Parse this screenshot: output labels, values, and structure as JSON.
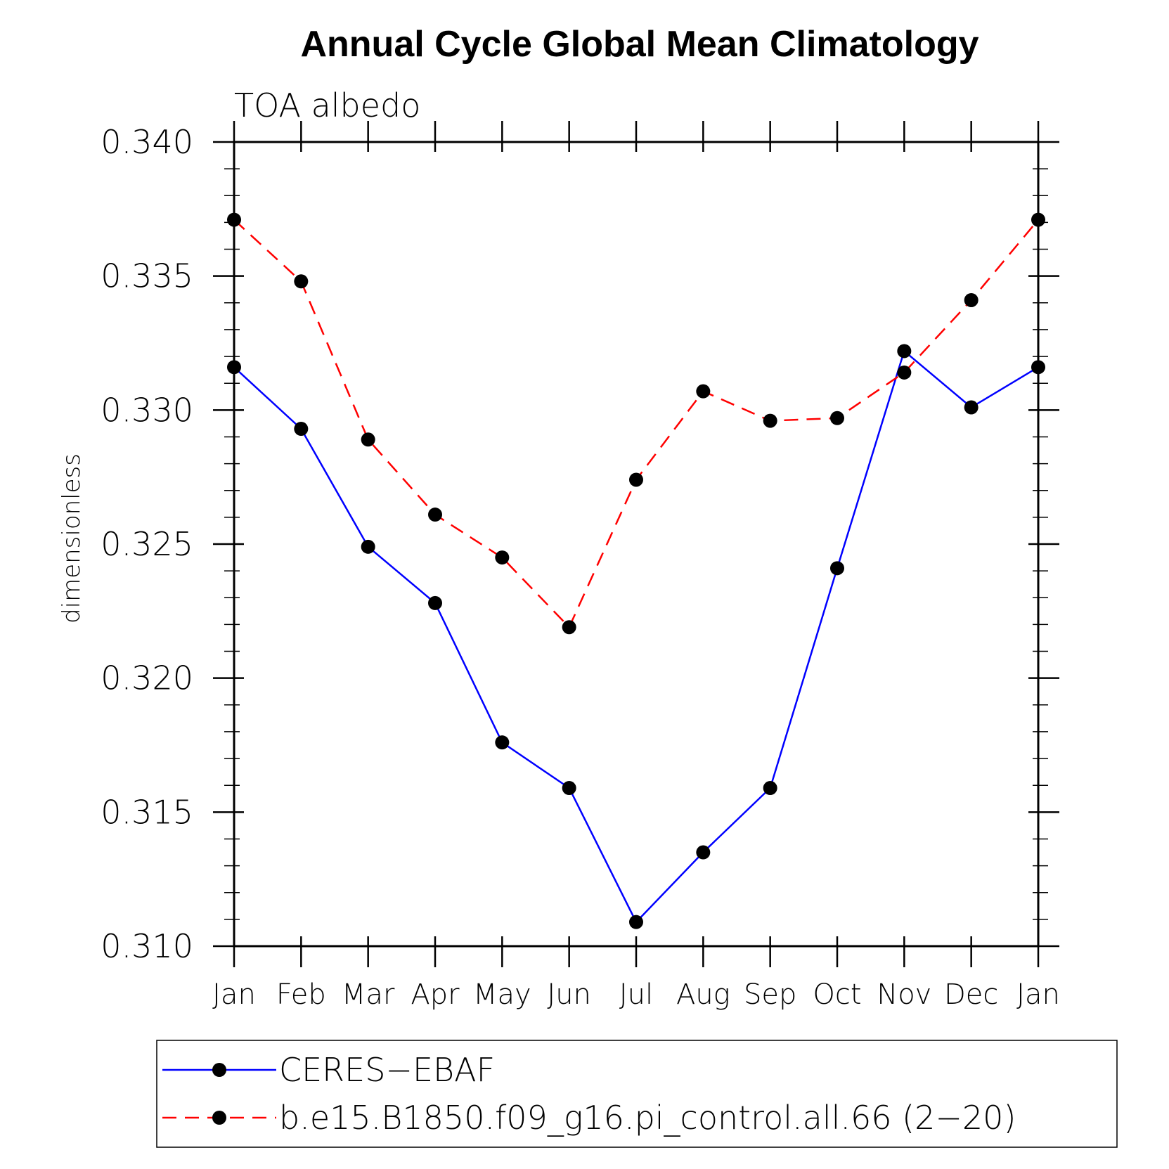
{
  "chart_data": {
    "type": "line",
    "title": "Annual Cycle Global Mean Climatology",
    "subtitle": "TOA albedo",
    "ylabel": "dimensionless",
    "xlabel": "",
    "ylim": [
      0.31,
      0.34
    ],
    "yticks": [
      0.31,
      0.315,
      0.32,
      0.325,
      0.33,
      0.335,
      0.34
    ],
    "ytick_labels": [
      "0.310",
      "0.315",
      "0.320",
      "0.325",
      "0.330",
      "0.335",
      "0.340"
    ],
    "yminor_step": 0.001,
    "categories": [
      "Jan",
      "Feb",
      "Mar",
      "Apr",
      "May",
      "Jun",
      "Jul",
      "Aug",
      "Sep",
      "Oct",
      "Nov",
      "Dec",
      "Jan"
    ],
    "series": [
      {
        "name": "CERES-EBAF",
        "color": "#0000ff",
        "dash": "solid",
        "marker": "filled-circle",
        "values": [
          0.3316,
          0.3293,
          0.3249,
          0.3228,
          0.3176,
          0.3159,
          0.3109,
          0.3135,
          0.3159,
          0.3241,
          0.3322,
          0.3301,
          0.3316
        ]
      },
      {
        "name": "b.e15.B1850.f09_g16.pi_control.all.66 (2-20)",
        "color": "#ff0000",
        "dash": "dashed",
        "marker": "filled-circle",
        "values": [
          0.3371,
          0.3348,
          0.3289,
          0.3261,
          0.3245,
          0.3219,
          0.3274,
          0.3307,
          0.3296,
          0.3297,
          0.3314,
          0.3341,
          0.3371
        ]
      }
    ],
    "legend": {
      "position": "bottom",
      "entries": [
        "CERES−EBAF",
        "b.e15.B1850.f09_g16.pi_control.all.66 (2−20)"
      ]
    }
  }
}
